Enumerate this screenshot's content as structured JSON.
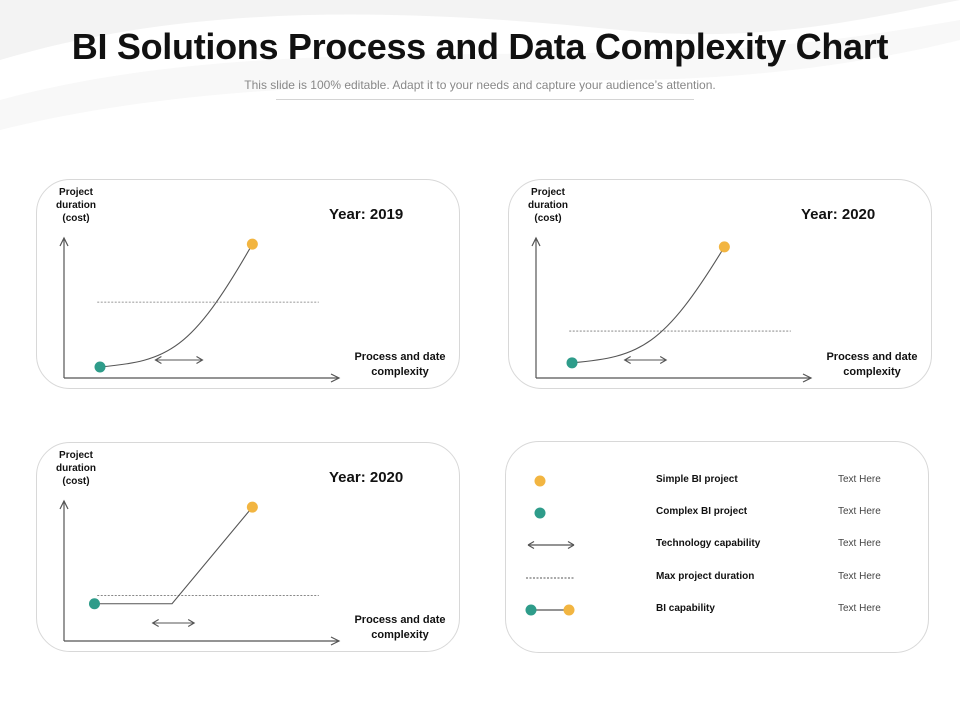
{
  "header": {
    "title": "BI Solutions Process and Data Complexity Chart",
    "subtitle": "This slide is 100% editable. Adapt it to your needs and capture your audience’s attention."
  },
  "colors": {
    "simple": "#f2b541",
    "complex": "#2e9c8a",
    "line": "#555555",
    "axis": "#555555"
  },
  "chart_data": [
    {
      "type": "line",
      "title": "Year: 2019",
      "ylabel": "Project duration (cost)",
      "xlabel": "Process and date complexity",
      "curve": "smooth",
      "start": {
        "x": 0.13,
        "y": 0.08,
        "marker": "Complex BI project"
      },
      "end": {
        "x": 0.68,
        "y": 0.97,
        "marker": "Simple BI project"
      },
      "max_duration": 0.55,
      "tech_capability": [
        0.33,
        0.5
      ],
      "xlim": [
        0,
        1
      ],
      "ylim": [
        0,
        1
      ]
    },
    {
      "type": "line",
      "title": "Year: 2020",
      "ylabel": "Project duration (cost)",
      "xlabel": "Process and date complexity",
      "curve": "smooth",
      "start": {
        "x": 0.13,
        "y": 0.11,
        "marker": "Complex BI project"
      },
      "end": {
        "x": 0.68,
        "y": 0.95,
        "marker": "Simple BI project"
      },
      "max_duration": 0.34,
      "tech_capability": [
        0.32,
        0.47
      ],
      "xlim": [
        0,
        1
      ],
      "ylim": [
        0,
        1
      ]
    },
    {
      "type": "line",
      "title": "Year: 2020",
      "ylabel": "Project duration (cost)",
      "xlabel": "Process and date complexity",
      "curve": "piecewise",
      "start": {
        "x": 0.11,
        "y": 0.27,
        "marker": "Complex BI project"
      },
      "knee": {
        "x": 0.39,
        "y": 0.27
      },
      "end": {
        "x": 0.68,
        "y": 0.97,
        "marker": "Simple BI project"
      },
      "max_duration": 0.33,
      "tech_capability": [
        0.32,
        0.47
      ],
      "xlim": [
        0,
        1
      ],
      "ylim": [
        0,
        1
      ]
    }
  ],
  "legend": [
    {
      "symbol": "dot-simple",
      "label": "Simple BI project",
      "text": "Text Here"
    },
    {
      "symbol": "dot-complex",
      "label": "Complex BI project",
      "text": "Text Here"
    },
    {
      "symbol": "double-arrow",
      "label": "Technology capability",
      "text": "Text Here"
    },
    {
      "symbol": "dashed-line",
      "label": "Max project duration",
      "text": "Text Here"
    },
    {
      "symbol": "capability-line",
      "label": "BI capability",
      "text": "Text Here"
    }
  ]
}
